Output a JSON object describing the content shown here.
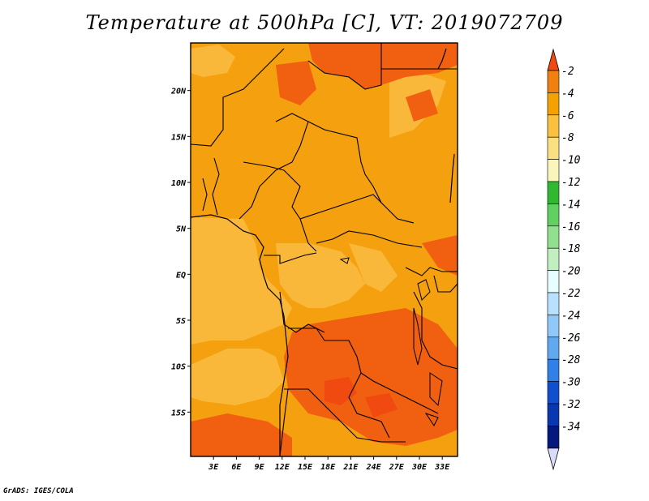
{
  "title": "Temperature at 500hPa [C], VT: 2019072709",
  "credit": "GrADS: IGES/COLA",
  "map": {
    "lon_range": [
      0,
      35
    ],
    "lat_range": [
      -20,
      25
    ],
    "lon_ticks": [
      "3E",
      "6E",
      "9E",
      "12E",
      "15E",
      "18E",
      "21E",
      "24E",
      "27E",
      "30E",
      "33E"
    ],
    "lat_ticks": [
      "20N",
      "15N",
      "10N",
      "5N",
      "EQ",
      "5S",
      "10S",
      "15S"
    ],
    "field_colors": {
      "-2": "#f06010",
      "-4": "#f5a00f",
      "-6": "#fab83a"
    }
  },
  "colorbar": {
    "labels": [
      "-2",
      "-4",
      "-6",
      "-8",
      "-10",
      "-12",
      "-14",
      "-16",
      "-18",
      "-20",
      "-22",
      "-24",
      "-26",
      "-28",
      "-30",
      "-32",
      "-34"
    ],
    "colors": [
      "#f04a10",
      "#f08010",
      "#f5a200",
      "#fac040",
      "#fae080",
      "#faf5bb",
      "#30b830",
      "#60d060",
      "#90e090",
      "#c0f0c0",
      "#e8ffff",
      "#b8e0ff",
      "#90c8fa",
      "#60a8f0",
      "#3080e8",
      "#1050d0",
      "#0838b0",
      "#041880",
      "#d8dcfa"
    ],
    "top_arrow_color": "#f04a10",
    "bottom_arrow_color": "#d8dcfa"
  }
}
